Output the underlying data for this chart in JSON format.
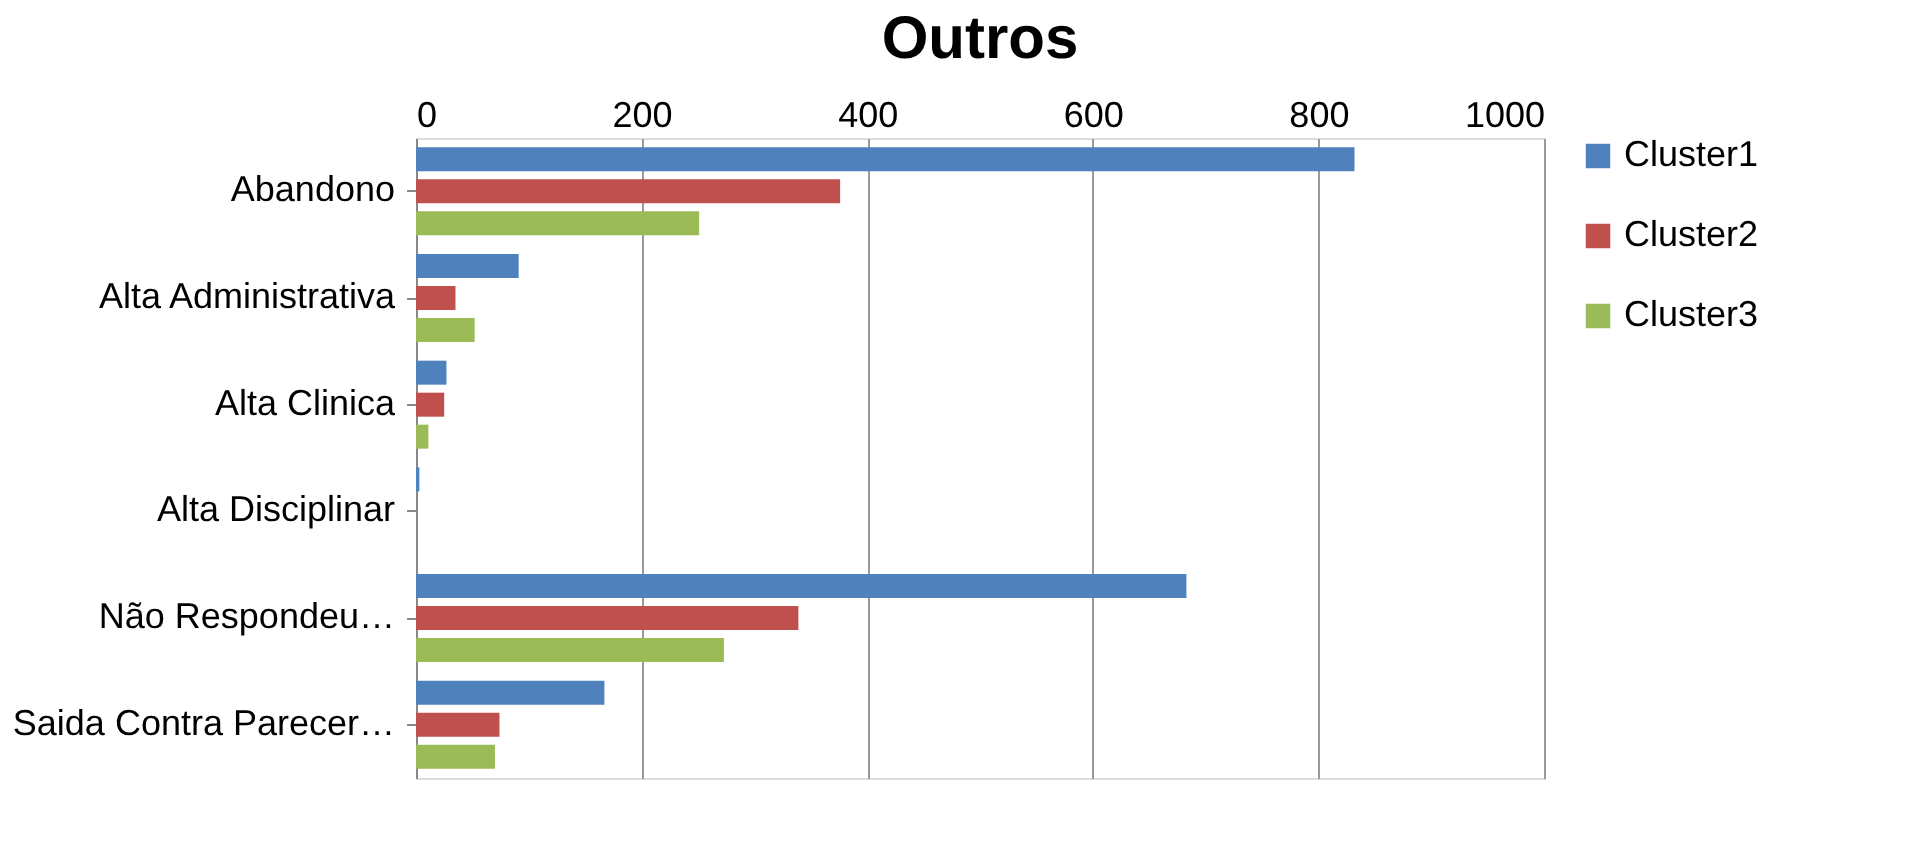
{
  "chart_data": {
    "type": "bar",
    "orientation": "horizontal",
    "title": "Outros",
    "categories": [
      "Abandono",
      "Alta Administrativa",
      "Alta Clinica",
      "Alta Disciplinar",
      "Não Respondeu…",
      "Saida Contra Parecer…"
    ],
    "series": [
      {
        "name": "Cluster1",
        "color": "#4f81bd",
        "values": [
          832,
          91,
          27,
          3,
          683,
          167
        ]
      },
      {
        "name": "Cluster2",
        "color": "#c0504d",
        "values": [
          376,
          35,
          25,
          0,
          339,
          74
        ]
      },
      {
        "name": "Cluster3",
        "color": "#9bbb59",
        "values": [
          251,
          52,
          11,
          0,
          273,
          70
        ]
      }
    ],
    "xlim": [
      0,
      1000
    ],
    "xticks": [
      0,
      200,
      400,
      600,
      800,
      1000
    ],
    "grid": "x",
    "legend": "right"
  }
}
